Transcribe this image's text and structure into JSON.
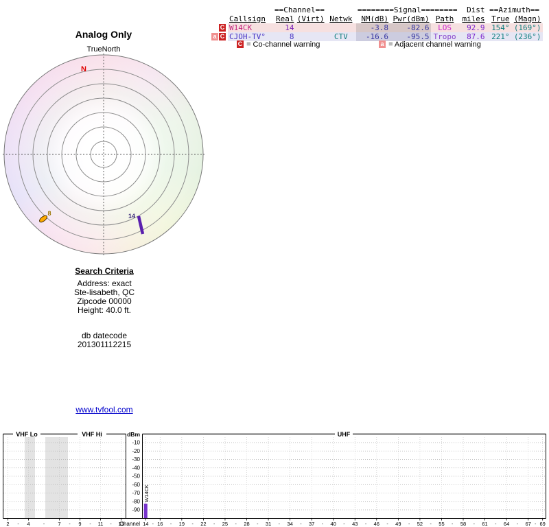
{
  "colors": {
    "row_w14ck_bg": "#f6e0e0",
    "row_cjoh_bg": "#e6e6f4",
    "callsign_w14ck": "#c2267d",
    "callsign_cjoh": "#4633c4",
    "nm_pwr_text": "#3333a0",
    "teal_text": "#0d7d7d",
    "dist_text": "#7a22cc",
    "co_channel_badge": "#cc2222",
    "adjacent_badge": "#f09090",
    "bar_purple": "#7733cc",
    "marker_orange": "#ffaa00",
    "marker_purple": "#5a1fae",
    "north_red": "#e00000",
    "link_blue": "#0000cc"
  },
  "radar": {
    "title": "Analog Only",
    "north_label": "TrueNorth",
    "n_marker": "N"
  },
  "table": {
    "group": {
      "channel": "==Channel==",
      "signal": "========Signal========",
      "dist": "Dist",
      "azimuth": "==Azimuth=="
    },
    "headers": {
      "callsign": "Callsign",
      "real": "Real",
      "virt": "(Virt)",
      "netwk": "Netwk",
      "nm": "NM(dB)",
      "pwr": "Pwr(dBm)",
      "path": "Path",
      "miles": "miles",
      "true": "True",
      "magn": "(Magn)"
    },
    "rows": [
      {
        "badges": [
          "C"
        ],
        "callsign": "W14CK",
        "real": "14",
        "virt": "",
        "netwk": "",
        "nm": "-3.8",
        "pwr": "-82.6",
        "path": "LOS",
        "miles": "92.9",
        "true": "154°",
        "magn": "(169°)"
      },
      {
        "badges": [
          "a",
          "C"
        ],
        "callsign": "CJOH-TV°",
        "real": "8",
        "virt": "",
        "netwk": "CTV",
        "nm": "-16.6",
        "pwr": "-95.5",
        "path": "Tropo",
        "miles": "87.6",
        "true": "221°",
        "magn": "(236°)"
      }
    ],
    "legend": [
      {
        "badge": "C",
        "label": "= Co-channel warning"
      },
      {
        "badge": "a",
        "label": "= Adjacent channel warning"
      }
    ]
  },
  "search": {
    "title": "Search Criteria",
    "lines": [
      "Address: exact",
      "Ste-lisabeth, QC",
      "Zipcode 00000",
      "Height: 40.0 ft."
    ],
    "db_lines": [
      "db datecode",
      "201301112215"
    ]
  },
  "link": "www.tvfool.com",
  "chart_data": [
    {
      "type": "scatter",
      "polar": true,
      "title": "Analog Only",
      "orientation": "TrueNorth",
      "rings": 7,
      "magnetic_north": {
        "marker": "N",
        "offset_deg": -13
      },
      "points": [
        {
          "label": "8",
          "callsign": "CJOH-TV",
          "azimuth_true_deg": 221,
          "azimuth_magnetic_deg": 236,
          "distance_miles": 87.6,
          "color": "#ffaa00"
        },
        {
          "label": "14",
          "callsign": "W14CK",
          "azimuth_true_deg": 154,
          "azimuth_magnetic_deg": 169,
          "distance_miles": 92.9,
          "color": "#5a1fae"
        }
      ]
    },
    {
      "type": "bar",
      "sections": {
        "vhf_lo": "VHF Lo",
        "vhf_hi": "VHF Hi",
        "uhf": "UHF"
      },
      "ylabel": "dBm",
      "xlabel": "Channel",
      "ylim": [
        -100,
        -5
      ],
      "yticks": [
        -10,
        -20,
        -30,
        -40,
        -50,
        -60,
        -70,
        -80,
        -90
      ],
      "grid": true,
      "vhf_channels": [
        2,
        4,
        7,
        9,
        11,
        13
      ],
      "uhf_channels": [
        14,
        16,
        19,
        22,
        25,
        28,
        31,
        34,
        37,
        40,
        43,
        46,
        49,
        52,
        55,
        58,
        61,
        64,
        67,
        69
      ],
      "bars": [
        {
          "label": "W14CK",
          "channel": 14,
          "pwr_dbm": -82.6,
          "color": "#7733cc"
        }
      ]
    }
  ]
}
